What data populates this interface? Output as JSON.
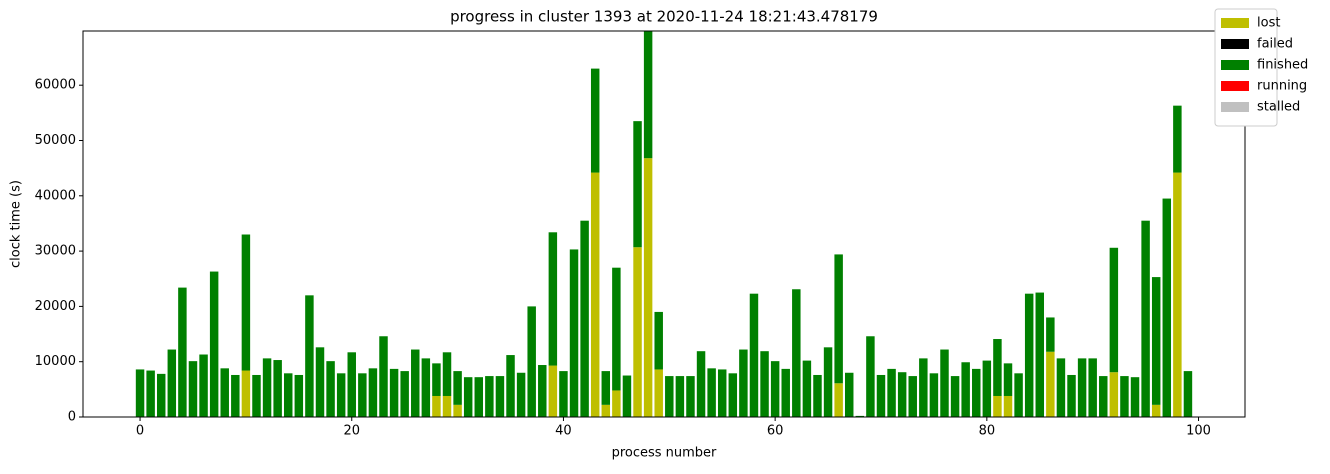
{
  "chart_data": {
    "type": "stacked_bar",
    "title": "progress in cluster 1393 at 2020-11-24 18:21:43.478179",
    "xlabel": "process number",
    "ylabel": "clock time (s)",
    "x": [
      0,
      1,
      2,
      3,
      4,
      5,
      6,
      7,
      8,
      9,
      10,
      11,
      12,
      13,
      14,
      15,
      16,
      17,
      18,
      19,
      20,
      21,
      22,
      23,
      24,
      25,
      26,
      27,
      28,
      29,
      30,
      31,
      32,
      33,
      34,
      35,
      36,
      37,
      38,
      39,
      40,
      41,
      42,
      43,
      44,
      45,
      46,
      47,
      48,
      49,
      50,
      51,
      52,
      53,
      54,
      55,
      56,
      57,
      58,
      59,
      60,
      61,
      62,
      63,
      64,
      65,
      66,
      67,
      68,
      69,
      70,
      71,
      72,
      73,
      74,
      75,
      76,
      77,
      78,
      79,
      80,
      81,
      82,
      83,
      84,
      85,
      86,
      87,
      88,
      89,
      90,
      91,
      92,
      93,
      94,
      95,
      96,
      97,
      98,
      99
    ],
    "series": [
      {
        "name": "lost",
        "color": "#bfbf00",
        "values": [
          0,
          0,
          0,
          0,
          0,
          0,
          0,
          0,
          0,
          0,
          8400,
          0,
          0,
          0,
          0,
          0,
          0,
          0,
          0,
          0,
          0,
          0,
          0,
          0,
          0,
          0,
          0,
          0,
          3800,
          3800,
          2200,
          0,
          0,
          0,
          0,
          0,
          0,
          0,
          0,
          9300,
          0,
          0,
          0,
          44200,
          2200,
          4800,
          0,
          30700,
          46800,
          8600,
          0,
          0,
          0,
          0,
          0,
          0,
          0,
          0,
          0,
          0,
          0,
          0,
          0,
          0,
          0,
          0,
          6100,
          0,
          0,
          0,
          0,
          0,
          0,
          0,
          0,
          0,
          0,
          0,
          0,
          0,
          0,
          3800,
          3800,
          0,
          0,
          0,
          11800,
          0,
          0,
          0,
          0,
          0,
          8100,
          0,
          0,
          0,
          2200,
          0,
          44200,
          0
        ]
      },
      {
        "name": "failed",
        "color": "#000000",
        "values": [
          0,
          0,
          0,
          0,
          0,
          0,
          0,
          0,
          0,
          0,
          0,
          0,
          0,
          0,
          0,
          0,
          0,
          0,
          0,
          0,
          0,
          0,
          0,
          0,
          0,
          0,
          0,
          0,
          0,
          0,
          0,
          0,
          0,
          0,
          0,
          0,
          0,
          0,
          0,
          0,
          0,
          0,
          0,
          0,
          0,
          0,
          0,
          0,
          0,
          0,
          0,
          0,
          0,
          0,
          0,
          0,
          0,
          0,
          0,
          0,
          0,
          0,
          0,
          0,
          0,
          0,
          0,
          0,
          0,
          0,
          0,
          0,
          0,
          0,
          0,
          0,
          0,
          0,
          0,
          0,
          0,
          0,
          0,
          0,
          0,
          0,
          0,
          0,
          0,
          0,
          0,
          0,
          0,
          0,
          0,
          0,
          0,
          0,
          0,
          0
        ]
      },
      {
        "name": "finished",
        "color": "#008000",
        "values": [
          8600,
          8400,
          7800,
          12200,
          23400,
          10100,
          11300,
          26300,
          8800,
          7600,
          24600,
          7600,
          10600,
          10300,
          7900,
          7600,
          22000,
          12600,
          10100,
          7900,
          11700,
          7900,
          8800,
          14600,
          8700,
          8300,
          12200,
          10600,
          5900,
          7900,
          6100,
          7200,
          7200,
          7400,
          7400,
          11200,
          8000,
          20000,
          9400,
          24100,
          8300,
          30300,
          35500,
          18800,
          6100,
          22200,
          7500,
          22800,
          23700,
          10400,
          7400,
          7400,
          7400,
          11900,
          8800,
          8600,
          7900,
          12200,
          22300,
          11900,
          10100,
          8700,
          23100,
          10200,
          7600,
          12600,
          23300,
          8000,
          200,
          14600,
          7600,
          8700,
          8100,
          7400,
          10600,
          7900,
          12200,
          7400,
          9900,
          8700,
          10200,
          10300,
          5900,
          7900,
          22300,
          22500,
          6200,
          10600,
          7600,
          10600,
          10600,
          7400,
          22500,
          7400,
          7200,
          35500,
          23100,
          39500,
          12100,
          8300
        ]
      },
      {
        "name": "running",
        "color": "#ff0000",
        "values": [
          0,
          0,
          0,
          0,
          0,
          0,
          0,
          0,
          0,
          0,
          0,
          0,
          0,
          0,
          0,
          0,
          0,
          0,
          0,
          0,
          0,
          0,
          0,
          0,
          0,
          0,
          0,
          0,
          0,
          0,
          0,
          0,
          0,
          0,
          0,
          0,
          0,
          0,
          0,
          0,
          0,
          0,
          0,
          0,
          0,
          0,
          0,
          0,
          0,
          0,
          0,
          0,
          0,
          0,
          0,
          0,
          0,
          0,
          0,
          0,
          0,
          0,
          0,
          0,
          0,
          0,
          0,
          0,
          0,
          0,
          0,
          0,
          0,
          0,
          0,
          0,
          0,
          0,
          0,
          0,
          0,
          0,
          0,
          0,
          0,
          0,
          0,
          0,
          0,
          0,
          0,
          0,
          0,
          0,
          0,
          0,
          0,
          0,
          0,
          0
        ]
      },
      {
        "name": "stalled",
        "color": "#c0c0c0",
        "values": [
          0,
          0,
          0,
          0,
          0,
          0,
          0,
          0,
          0,
          0,
          0,
          0,
          0,
          0,
          0,
          0,
          0,
          0,
          0,
          0,
          0,
          0,
          0,
          0,
          0,
          0,
          0,
          0,
          0,
          0,
          0,
          0,
          0,
          0,
          0,
          0,
          0,
          0,
          0,
          0,
          0,
          0,
          0,
          0,
          0,
          0,
          0,
          0,
          0,
          0,
          0,
          0,
          0,
          0,
          0,
          0,
          0,
          0,
          0,
          0,
          0,
          0,
          0,
          0,
          0,
          0,
          0,
          0,
          0,
          0,
          0,
          0,
          0,
          0,
          0,
          0,
          0,
          0,
          0,
          0,
          0,
          0,
          0,
          0,
          0,
          0,
          0,
          0,
          0,
          0,
          0,
          0,
          0,
          0,
          0,
          0,
          0,
          0,
          0,
          0
        ]
      }
    ],
    "xlim": [
      -5.39,
      104.39
    ],
    "xticks": [
      0,
      20,
      40,
      60,
      80,
      100
    ],
    "ylim": [
      0,
      69800
    ],
    "yticks": [
      0,
      10000,
      20000,
      30000,
      40000,
      50000,
      60000
    ],
    "legend_loc": "upper right",
    "grid": false
  }
}
